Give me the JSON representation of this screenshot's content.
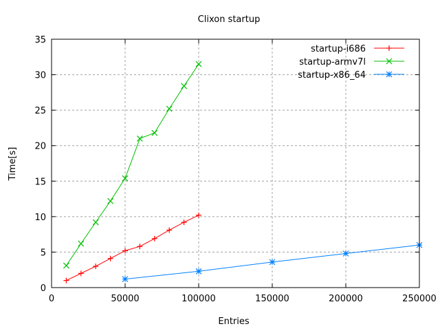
{
  "chart_data": {
    "type": "line",
    "title": "Clixon startup",
    "xlabel": "Entries",
    "ylabel": "Time[s]",
    "xlim": [
      0,
      250000
    ],
    "ylim": [
      0,
      35
    ],
    "xticks": [
      "0",
      "50000",
      "100000",
      "150000",
      "200000",
      "250000"
    ],
    "yticks": [
      "0",
      "5",
      "10",
      "15",
      "20",
      "25",
      "30",
      "35"
    ],
    "grid": true,
    "legend_position": "top-right",
    "series": [
      {
        "name": "startup-i686",
        "color": "#ff0000",
        "marker": "plus",
        "x": [
          10000,
          20000,
          30000,
          40000,
          50000,
          60000,
          70000,
          80000,
          90000,
          100000
        ],
        "y": [
          1.0,
          2.0,
          3.0,
          4.1,
          5.2,
          5.8,
          6.9,
          8.1,
          9.2,
          10.2
        ]
      },
      {
        "name": "startup-armv7l",
        "color": "#00c000",
        "marker": "cross",
        "x": [
          10000,
          20000,
          30000,
          40000,
          50000,
          60000,
          70000,
          80000,
          90000,
          100000
        ],
        "y": [
          3.1,
          6.2,
          9.2,
          12.2,
          15.4,
          21.0,
          21.8,
          25.2,
          28.4,
          31.5
        ]
      },
      {
        "name": "startup-x86_64",
        "color": "#0080ff",
        "marker": "star",
        "x": [
          50000,
          100000,
          150000,
          200000,
          250000
        ],
        "y": [
          1.2,
          2.3,
          3.6,
          4.8,
          6.0
        ]
      }
    ]
  }
}
